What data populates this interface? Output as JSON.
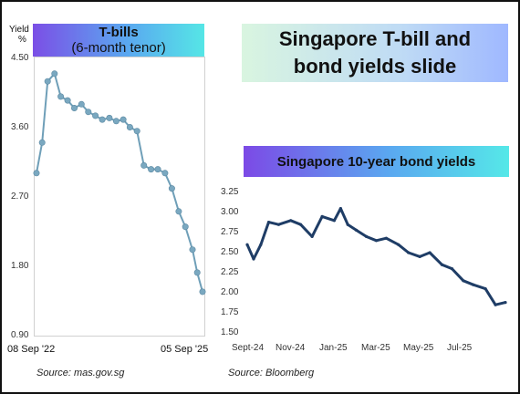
{
  "main_title": {
    "line1": "Singapore T-bill and",
    "line2": "bond yields slide"
  },
  "left_chart": {
    "badge_title": "T-bills",
    "badge_subtitle": "(6-month tenor)",
    "ylabel": "Yield",
    "yunit": "%",
    "source": "Source: mas.gov.sg",
    "chart_data": {
      "type": "line",
      "title": "T-bills (6-month tenor)",
      "ylabel": "Yield %",
      "ylim": [
        0.9,
        4.5
      ],
      "yticks": [
        "4.50",
        "3.60",
        "2.70",
        "1.80",
        "0.90"
      ],
      "x_start_label": "08 Sep '22",
      "x_end_label": "05 Sep '25",
      "x": [
        "2022-09-08",
        "2022-10-15",
        "2022-11-20",
        "2023-01-05",
        "2023-02-15",
        "2023-04-01",
        "2023-05-15",
        "2023-07-01",
        "2023-08-15",
        "2023-10-01",
        "2023-11-15",
        "2024-01-01",
        "2024-02-15",
        "2024-04-01",
        "2024-05-15",
        "2024-07-01",
        "2024-08-15",
        "2024-10-01",
        "2024-11-15",
        "2025-01-01",
        "2025-02-15",
        "2025-04-01",
        "2025-05-15",
        "2025-07-01",
        "2025-08-01",
        "2025-09-05"
      ],
      "values": [
        3.0,
        3.4,
        4.2,
        4.3,
        4.0,
        3.95,
        3.85,
        3.9,
        3.8,
        3.75,
        3.7,
        3.72,
        3.68,
        3.7,
        3.6,
        3.55,
        3.1,
        3.05,
        3.05,
        3.0,
        2.8,
        2.5,
        2.3,
        2.0,
        1.7,
        1.45
      ],
      "grid": false,
      "legend": "none"
    }
  },
  "right_chart": {
    "badge_title": "Singapore 10-year bond yields",
    "source": "Source: Bloomberg",
    "chart_data": {
      "type": "line",
      "title": "Singapore 10-year bond yields",
      "ylim": [
        1.5,
        3.25
      ],
      "yticks": [
        "3.25",
        "3.00",
        "2.75",
        "2.50",
        "2.25",
        "2.00",
        "1.75",
        "1.50"
      ],
      "xticks": [
        "Sept-24",
        "Nov-24",
        "Jan-25",
        "Mar-25",
        "May-25",
        "Jul-25"
      ],
      "x": [
        "2024-09-01",
        "2024-09-10",
        "2024-09-20",
        "2024-10-01",
        "2024-10-15",
        "2024-11-01",
        "2024-11-15",
        "2024-12-01",
        "2024-12-15",
        "2025-01-01",
        "2025-01-10",
        "2025-01-20",
        "2025-02-01",
        "2025-02-15",
        "2025-03-01",
        "2025-03-15",
        "2025-04-01",
        "2025-04-15",
        "2025-05-01",
        "2025-05-15",
        "2025-06-01",
        "2025-06-15",
        "2025-07-01",
        "2025-07-15",
        "2025-08-01",
        "2025-08-15",
        "2025-08-29"
      ],
      "values": [
        2.6,
        2.42,
        2.6,
        2.88,
        2.85,
        2.9,
        2.85,
        2.7,
        2.95,
        2.9,
        3.05,
        2.85,
        2.78,
        2.7,
        2.65,
        2.68,
        2.6,
        2.5,
        2.45,
        2.5,
        2.35,
        2.3,
        2.15,
        2.1,
        2.05,
        1.85,
        1.88
      ],
      "grid": false,
      "legend": "none"
    }
  }
}
